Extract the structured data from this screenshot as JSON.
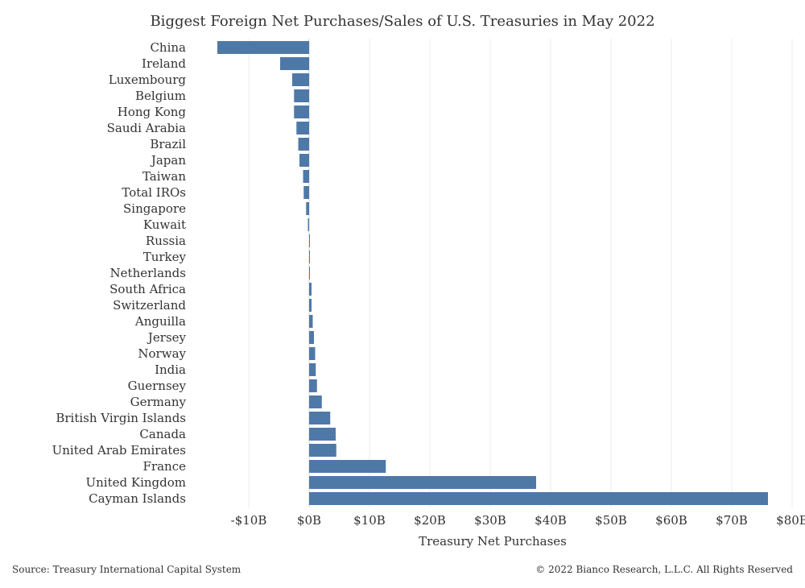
{
  "chart_data": {
    "type": "bar",
    "orientation": "horizontal",
    "title": "Biggest Foreign Net Purchases/Sales of U.S. Treasuries in May 2022",
    "xlabel": "Treasury Net Purchases",
    "ylabel": "",
    "xlim": [
      -18,
      80
    ],
    "xticks": [
      -10,
      0,
      10,
      20,
      30,
      40,
      50,
      60,
      70,
      80
    ],
    "xtick_labels": [
      "-$10B",
      "$0B",
      "$10B",
      "$20B",
      "$30B",
      "$40B",
      "$50B",
      "$60B",
      "$70B",
      "$80B"
    ],
    "grid": "vertical",
    "bar_color": "#4e79a7",
    "categories": [
      "China",
      "Ireland",
      "Luxembourg",
      "Belgium",
      "Hong Kong",
      "Saudi Arabia",
      "Brazil",
      "Japan",
      "Taiwan",
      "Total IROs",
      "Singapore",
      "Kuwait",
      "Russia",
      "Turkey",
      "Netherlands",
      "South Africa",
      "Switzerland",
      "Anguilla",
      "Jersey",
      "Norway",
      "India",
      "Guernsey",
      "Germany",
      "British Virgin Islands",
      "Canada",
      "United Arab Emirates",
      "France",
      "United Kingdom",
      "Cayman Islands"
    ],
    "values": [
      -15.2,
      -4.8,
      -2.8,
      -2.5,
      -2.5,
      -2.1,
      -1.8,
      -1.6,
      -1.0,
      -0.9,
      -0.5,
      -0.2,
      0.1,
      0.1,
      0.1,
      0.4,
      0.4,
      0.6,
      0.8,
      1.0,
      1.1,
      1.3,
      2.1,
      3.5,
      4.4,
      4.5,
      12.7,
      37.6,
      76.0
    ]
  },
  "footer": {
    "source": "Source: Treasury International Capital System",
    "copyright": "© 2022 Bianco Research, L.L.C. All Rights Reserved"
  }
}
